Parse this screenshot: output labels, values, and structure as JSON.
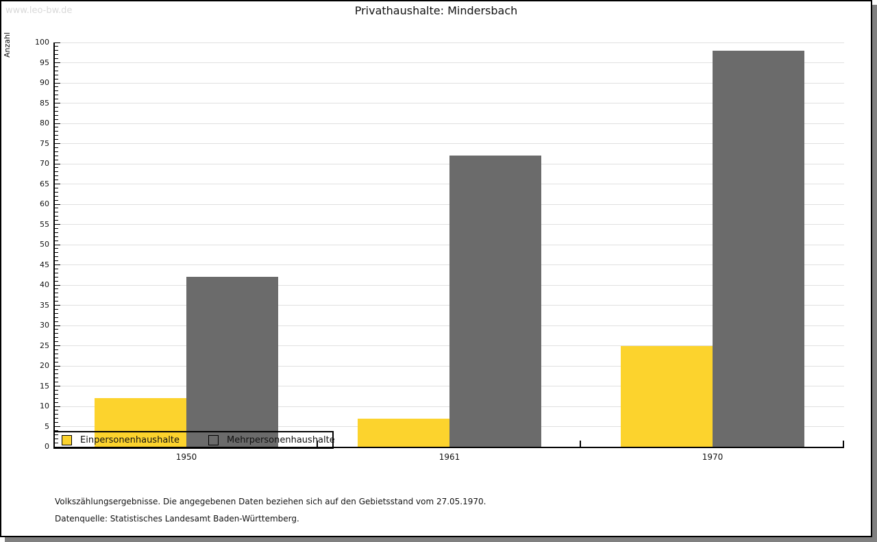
{
  "watermark": "www.leo-bw.de",
  "title": "Privathaushalte: Mindersbach",
  "chart_data": {
    "type": "bar",
    "categories": [
      "1950",
      "1961",
      "1970"
    ],
    "series": [
      {
        "name": "Einpersonenhaushalte",
        "color": "#fcd32d",
        "values": [
          12,
          7,
          25
        ]
      },
      {
        "name": "Mehrpersonenhaushalte",
        "color": "#6b6b6b",
        "values": [
          42,
          72,
          98
        ]
      }
    ],
    "title": "Privathaushalte: Mindersbach",
    "xlabel": "",
    "ylabel": "Anzahl",
    "ylim": [
      0,
      100
    ],
    "ytick_step": 5,
    "minor_tick_step": 1,
    "grid": "horizontal",
    "gridline_color": "#e0e0e0",
    "legend_position": "bottom-left"
  },
  "footnotes": {
    "line1": "Volkszählungsergebnisse. Die angegebenen Daten beziehen sich auf den Gebietsstand vom 27.05.1970.",
    "line2": "Datenquelle: Statistisches Landesamt Baden-Württemberg."
  }
}
